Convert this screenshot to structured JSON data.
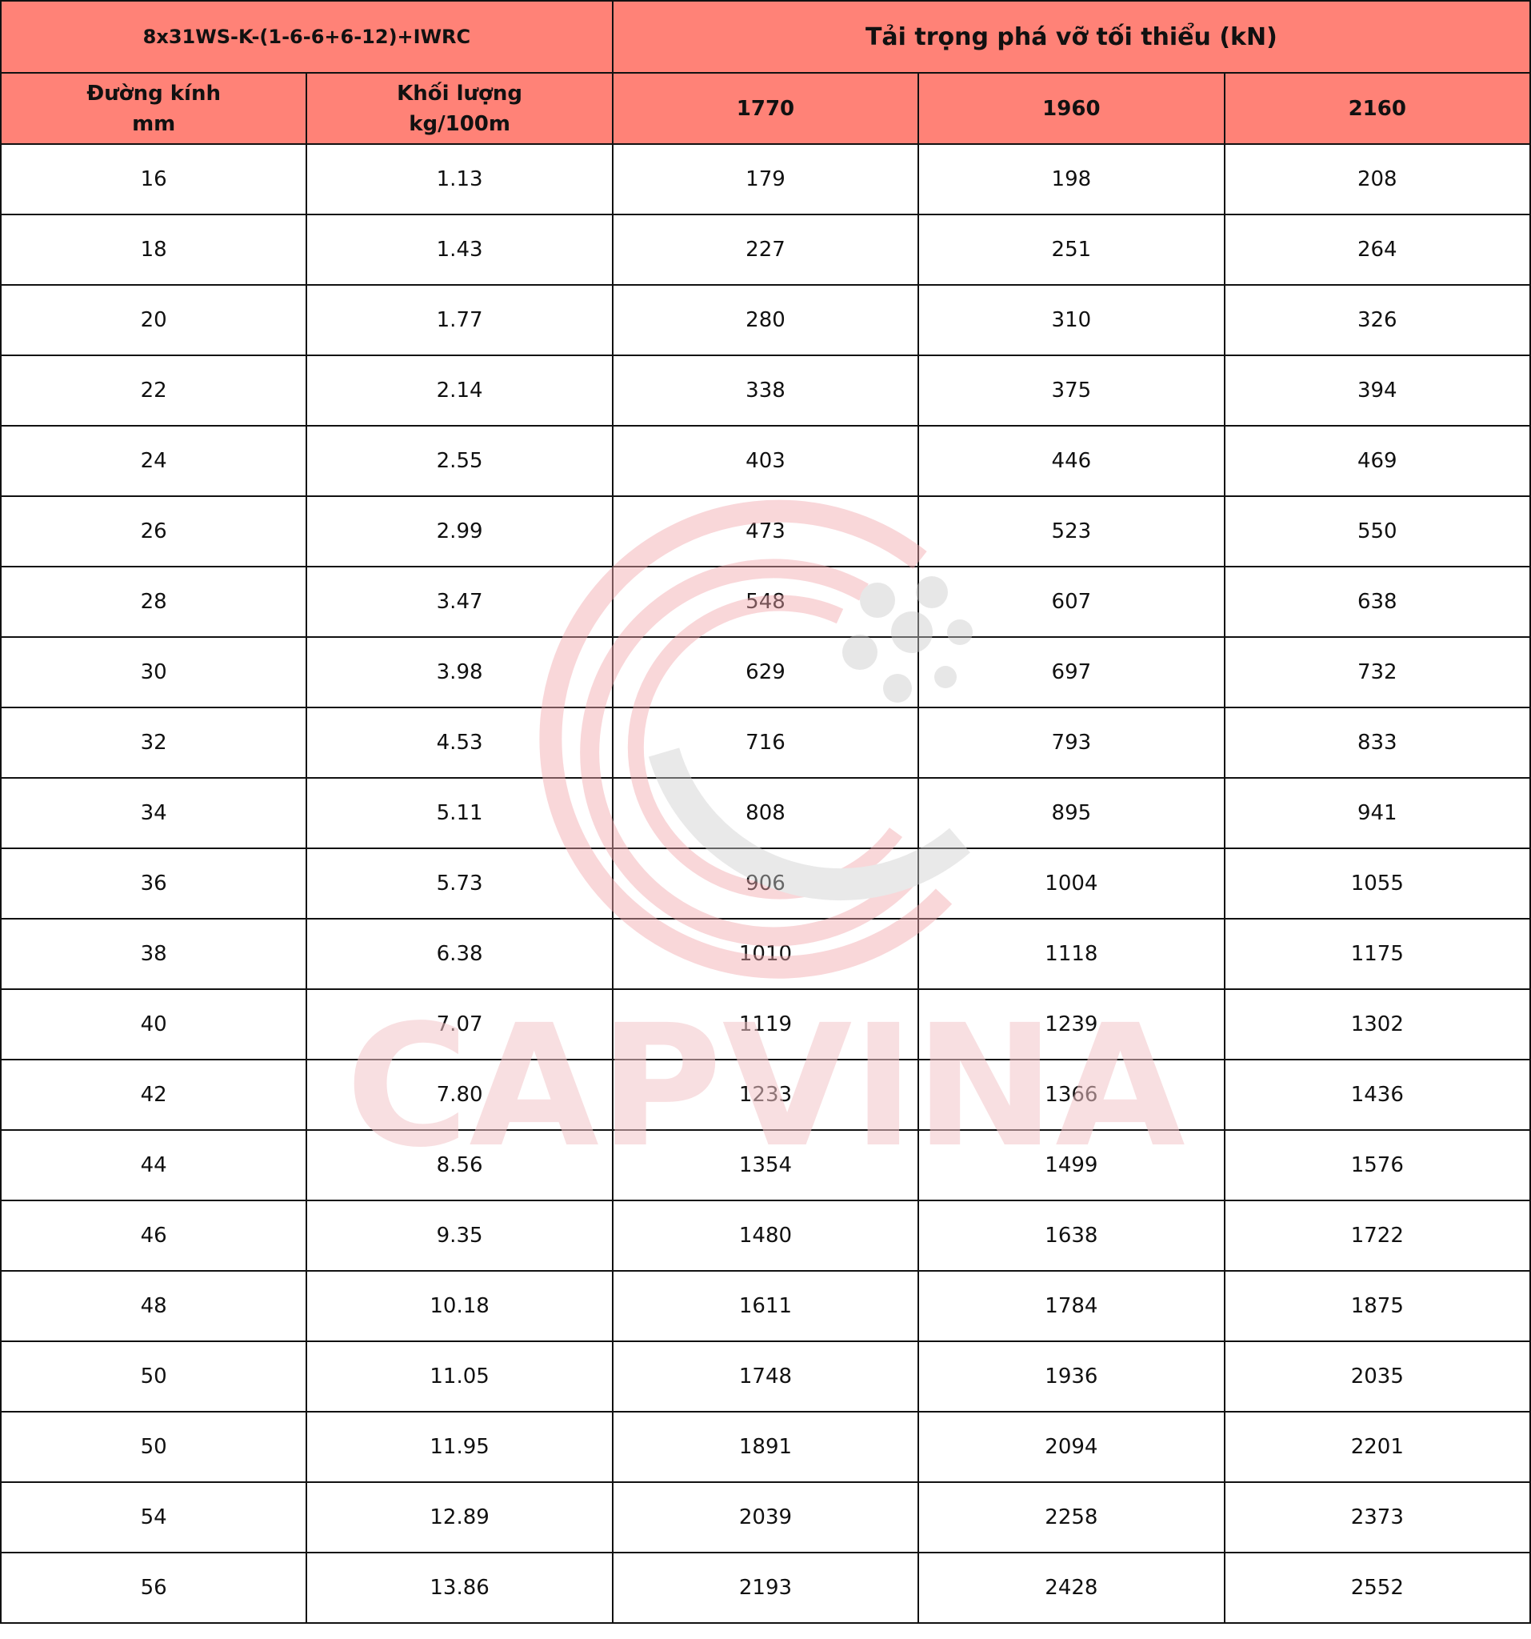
{
  "header": {
    "spec": "8x31WS-K-(1-6-6+6-12)+IWRC",
    "title": "Tải trọng phá vỡ tối thiểu (kN)",
    "col_diameter_line1": "Đường kính",
    "col_diameter_line2": "mm",
    "col_weight_line1": "Khối lượng",
    "col_weight_line2": "kg/100m",
    "grades": [
      "1770",
      "1960",
      "2160"
    ]
  },
  "rows": [
    [
      "16",
      "1.13",
      "179",
      "198",
      "208"
    ],
    [
      "18",
      "1.43",
      "227",
      "251",
      "264"
    ],
    [
      "20",
      "1.77",
      "280",
      "310",
      "326"
    ],
    [
      "22",
      "2.14",
      "338",
      "375",
      "394"
    ],
    [
      "24",
      "2.55",
      "403",
      "446",
      "469"
    ],
    [
      "26",
      "2.99",
      "473",
      "523",
      "550"
    ],
    [
      "28",
      "3.47",
      "548",
      "607",
      "638"
    ],
    [
      "30",
      "3.98",
      "629",
      "697",
      "732"
    ],
    [
      "32",
      "4.53",
      "716",
      "793",
      "833"
    ],
    [
      "34",
      "5.11",
      "808",
      "895",
      "941"
    ],
    [
      "36",
      "5.73",
      "906",
      "1004",
      "1055"
    ],
    [
      "38",
      "6.38",
      "1010",
      "1118",
      "1175"
    ],
    [
      "40",
      "7.07",
      "1119",
      "1239",
      "1302"
    ],
    [
      "42",
      "7.80",
      "1233",
      "1366",
      "1436"
    ],
    [
      "44",
      "8.56",
      "1354",
      "1499",
      "1576"
    ],
    [
      "46",
      "9.35",
      "1480",
      "1638",
      "1722"
    ],
    [
      "48",
      "10.18",
      "1611",
      "1784",
      "1875"
    ],
    [
      "50",
      "11.05",
      "1748",
      "1936",
      "2035"
    ],
    [
      "50",
      "11.95",
      "1891",
      "2094",
      "2201"
    ],
    [
      "54",
      "12.89",
      "2039",
      "2258",
      "2373"
    ],
    [
      "56",
      "13.86",
      "2193",
      "2428",
      "2552"
    ]
  ],
  "watermark": {
    "text": "CAPVINA",
    "color": "#f4c6c9"
  },
  "colors": {
    "header_bg": "#ff8277",
    "border": "#111111"
  }
}
